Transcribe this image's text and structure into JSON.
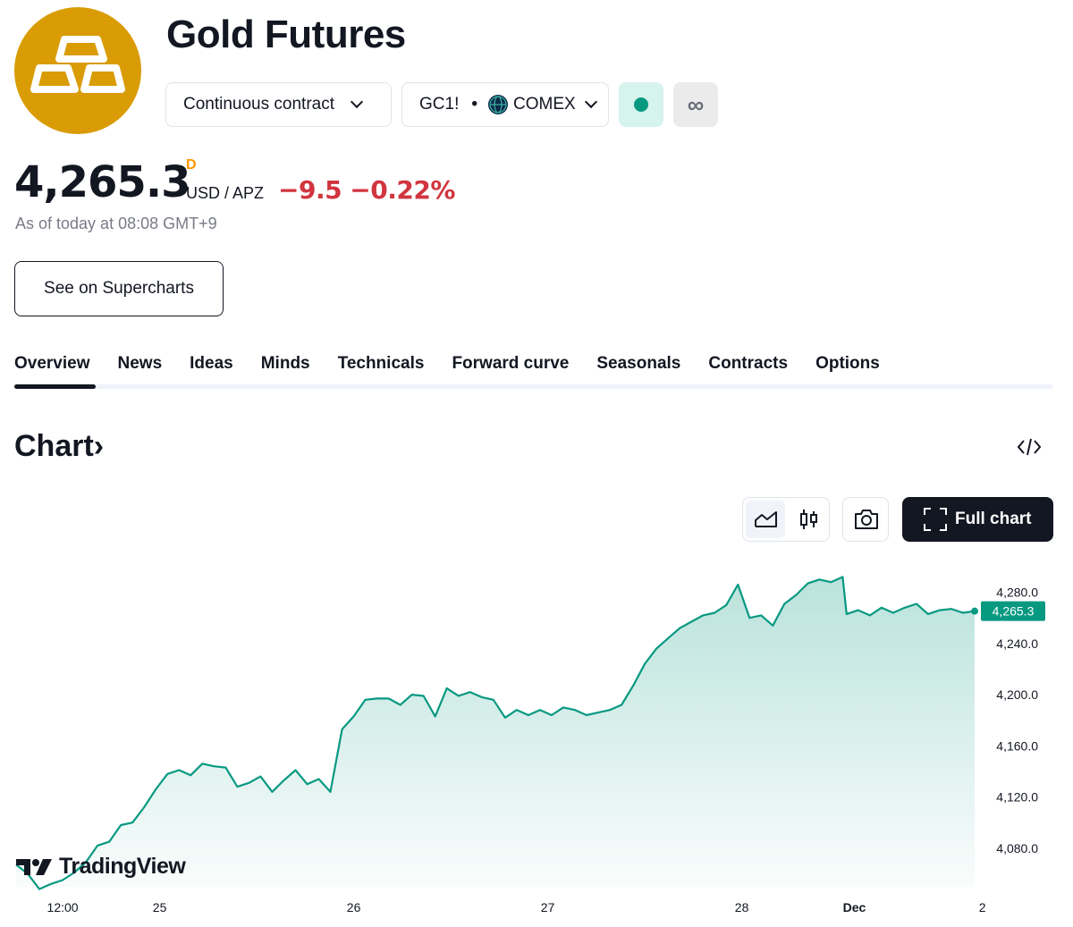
{
  "instrument": {
    "title": "Gold Futures",
    "contract_type": "Continuous contract",
    "symbol": "GC1!",
    "exchange": "COMEX",
    "logo_icon": "gold-bars-icon",
    "logo_color": "#d99c05"
  },
  "quote": {
    "price": "4,265.3",
    "delay_flag": "D",
    "currency": "USD / APZ",
    "change": "−9.5 −0.22%",
    "as_of": "As of today at 08:08 GMT+9",
    "change_color": "#d1353f"
  },
  "actions": {
    "supercharts": "See on Supercharts",
    "full_chart": "Full chart",
    "continuous_icon": "∞"
  },
  "tabs": [
    {
      "label": "Overview",
      "active": true
    },
    {
      "label": "News"
    },
    {
      "label": "Ideas"
    },
    {
      "label": "Minds"
    },
    {
      "label": "Technicals"
    },
    {
      "label": "Forward curve"
    },
    {
      "label": "Seasonals"
    },
    {
      "label": "Contracts"
    },
    {
      "label": "Options"
    }
  ],
  "chart_section": {
    "heading": "Chart",
    "heading_arrow": "›",
    "watermark": "TradingView"
  },
  "chart_data": {
    "type": "area",
    "series": [
      {
        "x_hours": [
          0,
          3,
          6,
          9,
          12,
          15,
          18,
          21,
          24,
          27,
          30,
          33,
          36,
          39,
          42,
          45,
          48,
          51,
          54,
          57,
          60,
          63,
          66,
          69,
          72,
          75,
          78,
          81,
          84,
          87,
          90,
          93,
          96,
          99,
          102,
          105,
          108,
          111,
          114,
          117,
          120,
          123,
          126,
          129,
          132,
          135,
          138,
          141,
          144,
          147,
          150,
          153,
          156,
          159,
          162,
          165,
          168,
          171,
          174,
          177,
          180,
          183,
          186,
          189,
          192,
          195,
          198,
          201,
          204,
          207,
          210,
          213,
          214,
          217,
          220,
          223,
          226,
          229,
          232,
          235,
          238,
          241,
          244,
          247
        ],
        "values": [
          4067,
          4060,
          4048,
          4052,
          4055,
          4061,
          4069,
          4082,
          4085,
          4098,
          4100,
          4112,
          4126,
          4138,
          4141,
          4137,
          4146,
          4144,
          4143,
          4128,
          4131,
          4136,
          4124,
          4133,
          4141,
          4130,
          4134,
          4124,
          4173,
          4183,
          4196,
          4197,
          4197,
          4192,
          4200,
          4199,
          4183,
          4205,
          4199,
          4202,
          4198,
          4196,
          4182,
          4188,
          4184,
          4188,
          4184,
          4190,
          4188,
          4184,
          4186,
          4188,
          4192,
          4207,
          4224,
          4236,
          4244,
          4252,
          4257,
          4262,
          4264,
          4270,
          4286,
          4260,
          4262,
          4254,
          4271,
          4278,
          4287,
          4290,
          4288,
          4292,
          4263,
          4266,
          4262,
          4268,
          4264,
          4268,
          4271,
          4263,
          4266,
          4267,
          4264,
          4265.3
        ],
        "color": "#089981"
      }
    ],
    "last_value": "4,265.3",
    "ylim": [
      4040,
      4300
    ],
    "y_ticks": [
      "4,280.0",
      "4,240.0",
      "4,200.0",
      "4,160.0",
      "4,120.0",
      "4,080.0"
    ],
    "x_ticks": [
      "12:00",
      "25",
      "26",
      "27",
      "28",
      "Dec",
      "2"
    ],
    "grid": false
  }
}
